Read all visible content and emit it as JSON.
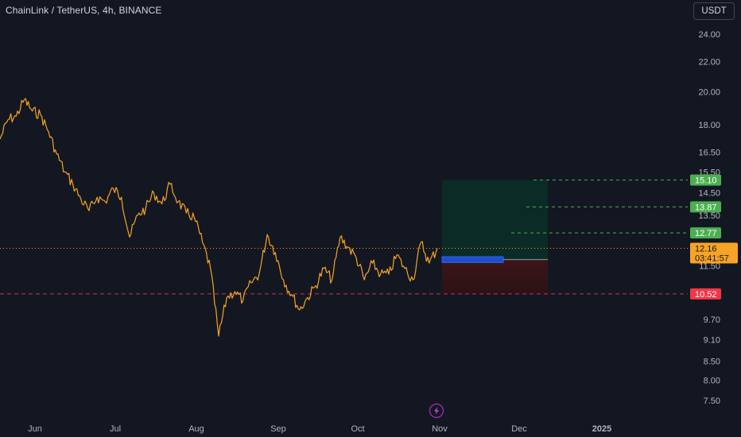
{
  "header": {
    "title": "ChainLink / TetherUS, 4h, BINANCE",
    "currency_button": "USDT"
  },
  "colors": {
    "background": "#131722",
    "price_line": "#f7a325",
    "target_green": "#4caf50",
    "stop_red": "#f23645",
    "entry_blue": "#2962ff",
    "profit_zone": "#0b2b26",
    "loss_zone": "#3a1418",
    "text": "#b2b5be"
  },
  "icons": {
    "bottom_center": "lightning-bolt-icon"
  },
  "chart_data": {
    "type": "line",
    "title": "ChainLink / TetherUS, 4h, BINANCE",
    "symbol": "LINK/USDT",
    "interval": "4h",
    "exchange": "BINANCE",
    "xlabel": "",
    "ylabel": "",
    "y_scale": "log",
    "ylim": [
      7.1,
      27.2
    ],
    "y_ticks": [
      "24.00",
      "22.00",
      "20.00",
      "18.00",
      "16.50",
      "15.50",
      "14.50",
      "13.50",
      "11.50",
      "9.70",
      "9.10",
      "8.50",
      "8.00",
      "7.50"
    ],
    "x_ticks": [
      "Jun",
      "Jul",
      "Aug",
      "Sep",
      "Oct",
      "Nov",
      "Dec",
      "2025"
    ],
    "grid": false,
    "series": [
      {
        "values": [
          17.2,
          18.3,
          18.5,
          19.5,
          18.8,
          18.6,
          17.6,
          16.4,
          15.5,
          14.9,
          14.2,
          13.7,
          14.3,
          14.1,
          14.7,
          14.3,
          12.6,
          13.5,
          13.8,
          14.5,
          14.0,
          14.9,
          14.1,
          13.6,
          13.4,
          12.4,
          11.4,
          9.2,
          10.4,
          10.6,
          10.3,
          10.9,
          11.2,
          12.7,
          12.0,
          11.0,
          10.5,
          10.0,
          10.4,
          10.8,
          11.4,
          11.0,
          12.6,
          12.2,
          11.8,
          11.0,
          11.6,
          11.2,
          11.2,
          11.9,
          11.4,
          11.0,
          12.4,
          11.6,
          12.16
        ]
      }
    ],
    "annotations": {
      "current_price": {
        "label": "12.16",
        "countdown": "03:41:57",
        "value": 12.16
      },
      "entry": {
        "low": 11.62,
        "high": 11.84
      },
      "stop_loss": {
        "label": "10.52",
        "value": 10.52
      },
      "take_profits": [
        {
          "label": "12.77",
          "value": 12.77
        },
        {
          "label": "13.87",
          "value": 13.87
        },
        {
          "label": "15.10",
          "value": 15.1
        }
      ]
    }
  }
}
